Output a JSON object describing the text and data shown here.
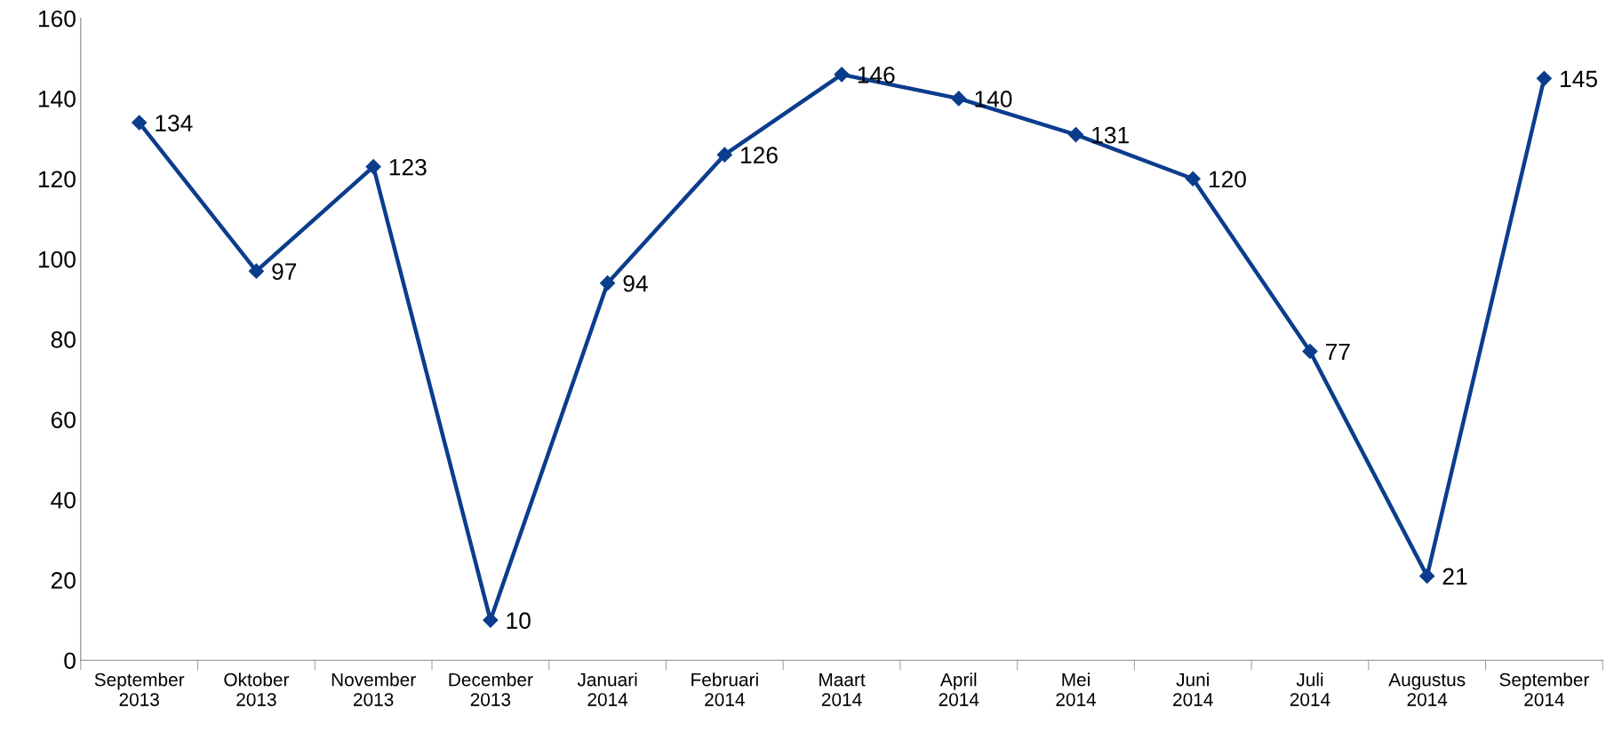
{
  "chart_data": {
    "type": "line",
    "categories": [
      "September\n2013",
      "Oktober\n2013",
      "November\n2013",
      "December\n2013",
      "Januari\n2014",
      "Februari\n2014",
      "Maart\n2014",
      "April\n2014",
      "Mei\n2014",
      "Juni\n2014",
      "Juli\n2014",
      "Augustus\n2014",
      "September\n2014"
    ],
    "series": [
      {
        "color": "#0b3d8c",
        "values": [
          134,
          97,
          123,
          10,
          94,
          126,
          146,
          140,
          131,
          120,
          77,
          21,
          145
        ]
      }
    ],
    "ylim": [
      0,
      160
    ],
    "yticks": [
      0,
      20,
      40,
      60,
      80,
      100,
      120,
      140,
      160
    ],
    "data_labels": true,
    "marker": "diamond",
    "line_style": "solid",
    "grid": false,
    "legend": false
  }
}
